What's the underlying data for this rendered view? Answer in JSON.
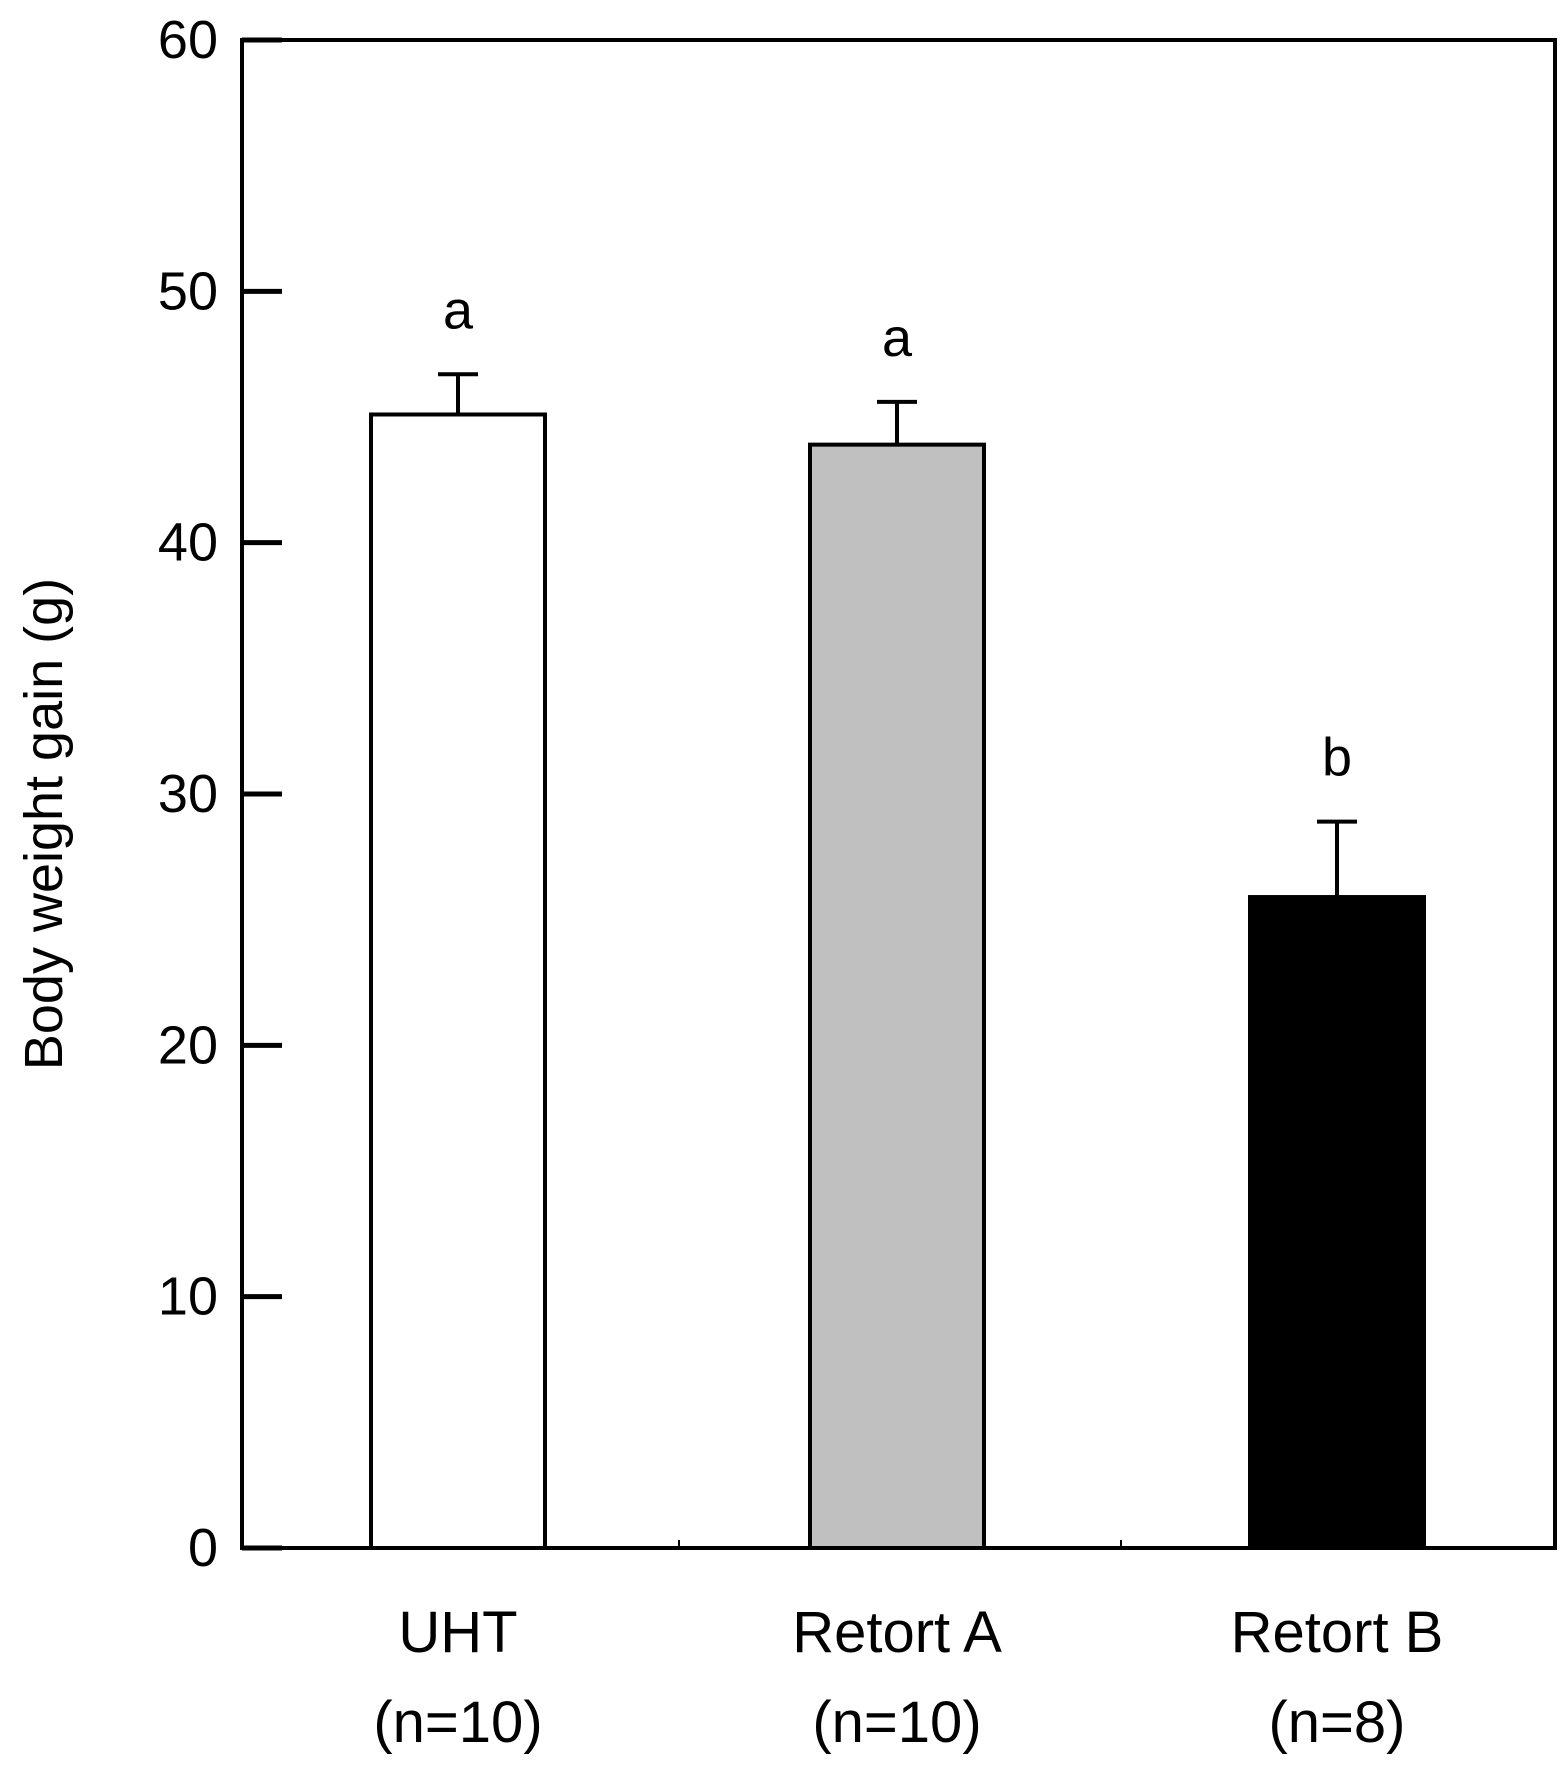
{
  "chart_data": {
    "type": "bar",
    "title": "",
    "xlabel": "",
    "ylabel": "Body weight gain (g)",
    "ylim": [
      0,
      60
    ],
    "yticks": [
      0,
      10,
      20,
      30,
      40,
      50,
      60
    ],
    "grid": false,
    "categories": [
      {
        "label": "UHT",
        "sublabel": "(n=10)"
      },
      {
        "label": "Retort A",
        "sublabel": "(n=10)"
      },
      {
        "label": "Retort B",
        "sublabel": "(n=8)"
      }
    ],
    "values": [
      45.1,
      43.9,
      25.9
    ],
    "errors": [
      1.6,
      1.7,
      3.0
    ],
    "significance_letters": [
      "a",
      "a",
      "b"
    ],
    "bar_colors": [
      "#ffffff",
      "#c0c0c0",
      "#000000"
    ]
  }
}
